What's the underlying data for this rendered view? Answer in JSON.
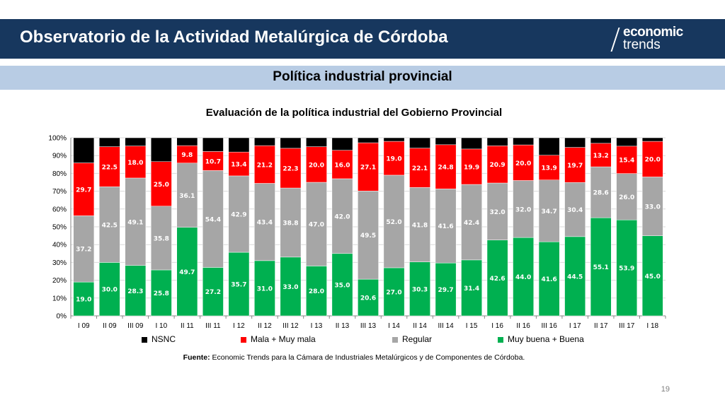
{
  "header": {
    "title": "Observatorio de la Actividad Metalúrgica de Córdoba"
  },
  "logo": {
    "line1": "economic",
    "line2": "trends"
  },
  "section": {
    "title": "Política industrial provincial"
  },
  "source": {
    "bold": "Fuente:",
    "text": " Economic Trends para la Cámara de Industriales Metalúrgicos y de Componentes de Córdoba."
  },
  "page_number": "19",
  "colors": {
    "NSNC": "#000000",
    "Mala": "#ff0000",
    "Regular": "#a6a6a6",
    "Buena": "#00b050",
    "header": "#17375e",
    "section": "#b8cce4"
  },
  "chart_data": {
    "type": "bar",
    "stacked": true,
    "title": "Evaluación de la política industrial del Gobierno Provincial",
    "categories": [
      "I 09",
      "II 09",
      "III 09",
      "I 10",
      "II 11",
      "III 11",
      "I 12",
      "II 12",
      "III 12",
      "I 13",
      "II 13",
      "III 13",
      "I 14",
      "II 14",
      "III 14",
      "I 15",
      "I 16",
      "II 16",
      "III 16",
      "I 17",
      "II 17",
      "III 17",
      "I 18"
    ],
    "ylim": [
      0,
      100
    ],
    "yticks": [
      "0%",
      "10%",
      "20%",
      "30%",
      "40%",
      "50%",
      "60%",
      "70%",
      "80%",
      "90%",
      "100%"
    ],
    "legend_position": "bottom",
    "series": [
      {
        "name": "Muy buena + Buena",
        "color": "#00b050",
        "values": [
          19.0,
          30.0,
          28.3,
          25.8,
          49.7,
          27.2,
          35.7,
          31.0,
          33.0,
          28.0,
          35.0,
          20.6,
          27.0,
          30.3,
          29.7,
          31.4,
          42.6,
          44.0,
          41.6,
          44.5,
          55.1,
          53.9,
          45.0
        ]
      },
      {
        "name": "Regular",
        "color": "#a6a6a6",
        "values": [
          37.2,
          42.5,
          49.1,
          35.8,
          36.1,
          54.4,
          42.9,
          43.4,
          38.8,
          47.0,
          42.0,
          49.5,
          52.0,
          41.8,
          41.6,
          42.4,
          32.0,
          32.0,
          34.7,
          30.4,
          28.6,
          26.0,
          33.0
        ]
      },
      {
        "name": "Mala + Muy mala",
        "color": "#ff0000",
        "values": [
          29.7,
          22.5,
          18.0,
          25.0,
          9.8,
          10.7,
          13.4,
          21.2,
          22.3,
          20.0,
          16.0,
          27.1,
          19.0,
          22.1,
          24.8,
          19.9,
          20.9,
          20.0,
          13.9,
          19.7,
          13.2,
          15.4,
          20.0
        ]
      },
      {
        "name": "NSNC",
        "color": "#000000",
        "values": [
          14.1,
          5.0,
          4.6,
          13.4,
          4.4,
          7.7,
          8.0,
          4.4,
          5.9,
          5.0,
          7.0,
          2.8,
          2.0,
          5.8,
          3.9,
          6.3,
          4.5,
          4.0,
          9.8,
          5.4,
          3.1,
          4.7,
          2.0
        ]
      }
    ],
    "legend_order": [
      "NSNC",
      "Mala + Muy mala",
      "Regular",
      "Muy buena + Buena"
    ]
  }
}
